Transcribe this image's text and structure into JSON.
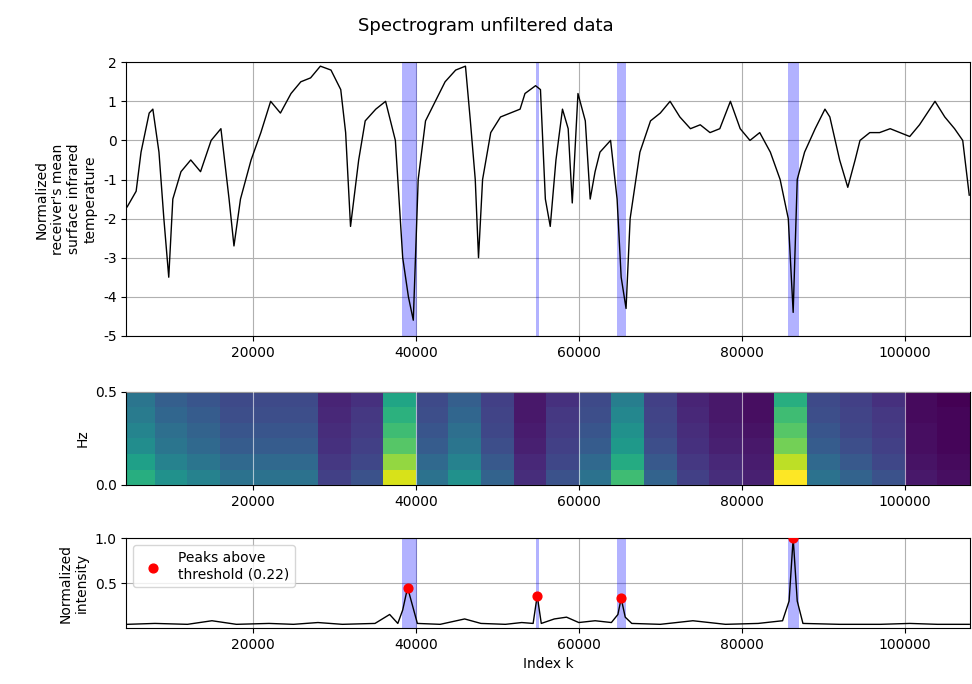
{
  "title": "Spectrogram unfiltered data",
  "chart_data": [
    {
      "type": "line",
      "y_label": "Normalized\nreceiver's mean\nsurface infrared\ntemperature",
      "xlim": [
        4500,
        108000
      ],
      "xticks": [
        20000,
        40000,
        60000,
        80000,
        100000
      ],
      "ylim": [
        -5,
        2
      ],
      "yticks": [
        -5,
        -4,
        -3,
        -2,
        -1,
        0,
        1,
        2
      ],
      "grid": true,
      "highlight_ranges": [
        [
          38300,
          40100
        ],
        [
          54800,
          55100
        ],
        [
          64700,
          65800
        ],
        [
          85700,
          87000
        ]
      ],
      "series": [
        {
          "color": "#000000",
          "line_style": "solid",
          "x": [
            4600,
            5700,
            6300,
            7300,
            7750,
            8500,
            9100,
            9700,
            10200,
            11200,
            12400,
            13600,
            14900,
            16100,
            17100,
            17700,
            18500,
            19800,
            21000,
            22200,
            23400,
            24700,
            25900,
            27100,
            28300,
            29600,
            30800,
            31400,
            32000,
            33000,
            33800,
            35100,
            36300,
            37500,
            38400,
            39100,
            39700,
            40300,
            41200,
            42400,
            43600,
            44900,
            46100,
            46700,
            47300,
            47700,
            48200,
            49200,
            50400,
            51600,
            52800,
            53400,
            54700,
            55300,
            55900,
            56500,
            57200,
            58000,
            58700,
            59200,
            59900,
            60800,
            61400,
            62000,
            62600,
            63900,
            64700,
            65200,
            65800,
            66300,
            67500,
            68800,
            70000,
            71200,
            72400,
            73700,
            74900,
            76100,
            77300,
            78600,
            79800,
            81000,
            82200,
            83500,
            84700,
            85700,
            86300,
            86800,
            87700,
            89000,
            90200,
            90800,
            92000,
            93000,
            93900,
            94500,
            95700,
            96900,
            98200,
            99400,
            100600,
            101800,
            103700,
            104900,
            106100,
            107100,
            107900
          ],
          "values": [
            -1.7,
            -1.3,
            -0.3,
            0.7,
            0.8,
            -0.3,
            -2.0,
            -3.5,
            -1.5,
            -0.8,
            -0.5,
            -0.8,
            0.0,
            0.3,
            -1.5,
            -2.7,
            -1.5,
            -0.5,
            0.2,
            1.0,
            0.7,
            1.2,
            1.5,
            1.6,
            1.9,
            1.8,
            1.3,
            0.2,
            -2.2,
            -0.5,
            0.5,
            0.8,
            1.0,
            0.0,
            -3.0,
            -4.0,
            -4.6,
            -1.0,
            0.5,
            1.0,
            1.5,
            1.8,
            1.9,
            0.5,
            -1.0,
            -3.0,
            -1.0,
            0.2,
            0.6,
            0.7,
            0.8,
            1.2,
            1.4,
            1.3,
            -1.5,
            -2.2,
            -0.5,
            0.8,
            0.3,
            -1.6,
            1.2,
            0.5,
            -1.5,
            -0.8,
            -0.3,
            0.0,
            -1.5,
            -3.5,
            -4.3,
            -2.0,
            -0.3,
            0.5,
            0.7,
            1.0,
            0.6,
            0.3,
            0.4,
            0.2,
            0.3,
            1.0,
            0.3,
            0.0,
            0.2,
            -0.3,
            -1.0,
            -2.0,
            -4.4,
            -1.0,
            -0.3,
            0.3,
            0.8,
            0.6,
            -0.5,
            -1.2,
            -0.5,
            0.0,
            0.2,
            0.2,
            0.3,
            0.2,
            0.1,
            0.4,
            1.0,
            0.6,
            0.3,
            0.0,
            -1.4
          ]
        }
      ]
    },
    {
      "type": "heatmap",
      "y_label": "Hz",
      "xlim": [
        4500,
        108000
      ],
      "xticks": [
        20000,
        40000,
        60000,
        80000,
        100000
      ],
      "ylim": [
        0.0,
        0.5
      ],
      "yticks": [
        0.0,
        0.5
      ],
      "grid": true,
      "x_edges": [
        4000,
        8000,
        12000,
        16000,
        20000,
        24000,
        28000,
        32000,
        36000,
        40000,
        44000,
        48000,
        52000,
        56000,
        60000,
        64000,
        68000,
        72000,
        76000,
        80000,
        84000,
        88000,
        92000,
        96000,
        100000,
        104000,
        108000
      ],
      "y_edges": [
        0.0,
        0.083,
        0.167,
        0.25,
        0.333,
        0.417,
        0.5
      ],
      "cells": [
        [
          0.55,
          0.45,
          0.4,
          0.35,
          0.35,
          0.35,
          0.2,
          0.25,
          0.8,
          0.35,
          0.45,
          0.3,
          0.15,
          0.25,
          0.35,
          0.6,
          0.3,
          0.2,
          0.15,
          0.12,
          0.85,
          0.35,
          0.3,
          0.25,
          0.1,
          0.08
        ],
        [
          0.5,
          0.4,
          0.36,
          0.32,
          0.32,
          0.32,
          0.18,
          0.22,
          0.72,
          0.32,
          0.4,
          0.27,
          0.14,
          0.22,
          0.32,
          0.54,
          0.27,
          0.18,
          0.14,
          0.11,
          0.77,
          0.32,
          0.27,
          0.22,
          0.09,
          0.07
        ],
        [
          0.44,
          0.36,
          0.32,
          0.28,
          0.28,
          0.28,
          0.16,
          0.2,
          0.64,
          0.28,
          0.36,
          0.24,
          0.12,
          0.2,
          0.28,
          0.48,
          0.24,
          0.16,
          0.12,
          0.1,
          0.68,
          0.28,
          0.24,
          0.2,
          0.08,
          0.06
        ],
        [
          0.41,
          0.34,
          0.3,
          0.26,
          0.26,
          0.26,
          0.15,
          0.19,
          0.6,
          0.26,
          0.34,
          0.22,
          0.11,
          0.19,
          0.26,
          0.45,
          0.22,
          0.15,
          0.11,
          0.09,
          0.64,
          0.26,
          0.22,
          0.19,
          0.08,
          0.06
        ],
        [
          0.38,
          0.31,
          0.28,
          0.24,
          0.24,
          0.24,
          0.14,
          0.18,
          0.56,
          0.24,
          0.31,
          0.21,
          0.1,
          0.18,
          0.24,
          0.42,
          0.21,
          0.14,
          0.1,
          0.08,
          0.6,
          0.24,
          0.21,
          0.18,
          0.07,
          0.06
        ],
        [
          0.36,
          0.29,
          0.26,
          0.23,
          0.23,
          0.23,
          0.13,
          0.16,
          0.52,
          0.23,
          0.29,
          0.2,
          0.1,
          0.16,
          0.23,
          0.39,
          0.2,
          0.13,
          0.1,
          0.08,
          0.55,
          0.23,
          0.2,
          0.16,
          0.07,
          0.05
        ]
      ]
    },
    {
      "type": "line",
      "x_label": "Index k",
      "y_label": "Normalized\nintensity",
      "xlim": [
        4500,
        108000
      ],
      "xticks": [
        20000,
        40000,
        60000,
        80000,
        100000
      ],
      "ylim": [
        0,
        1.0
      ],
      "yticks": [
        0.5,
        1.0
      ],
      "grid": true,
      "legend": "upper left",
      "highlight_ranges": [
        [
          38300,
          40100
        ],
        [
          54800,
          55100
        ],
        [
          64700,
          65800
        ],
        [
          85700,
          87000
        ]
      ],
      "series": [
        {
          "type": "line",
          "color": "#000000",
          "line_style": "solid",
          "x": [
            4600,
            8000,
            12000,
            15000,
            18000,
            22000,
            25000,
            28000,
            31000,
            35000,
            36800,
            37800,
            38400,
            39000,
            39600,
            40200,
            43000,
            46000,
            48000,
            51000,
            53000,
            54400,
            54900,
            55400,
            57000,
            58500,
            60000,
            62000,
            64000,
            64800,
            65200,
            65700,
            66500,
            70000,
            74000,
            78000,
            82000,
            85000,
            85800,
            86300,
            86800,
            87500,
            92000,
            97000,
            100600,
            104000,
            107900
          ],
          "values": [
            0.04,
            0.05,
            0.04,
            0.08,
            0.04,
            0.05,
            0.04,
            0.06,
            0.04,
            0.05,
            0.15,
            0.05,
            0.2,
            0.45,
            0.25,
            0.05,
            0.04,
            0.1,
            0.05,
            0.04,
            0.06,
            0.05,
            0.36,
            0.05,
            0.1,
            0.12,
            0.06,
            0.08,
            0.06,
            0.15,
            0.33,
            0.12,
            0.05,
            0.04,
            0.08,
            0.04,
            0.05,
            0.08,
            0.3,
            1.0,
            0.3,
            0.05,
            0.04,
            0.04,
            0.05,
            0.04,
            0.04
          ]
        },
        {
          "type": "scatter",
          "name": "Peaks above\nthreshold (0.22)",
          "color": "#ff0000",
          "marker": "circle",
          "x": [
            39000,
            54900,
            65200,
            86300
          ],
          "values": [
            0.45,
            0.36,
            0.33,
            1.0
          ]
        }
      ]
    }
  ]
}
